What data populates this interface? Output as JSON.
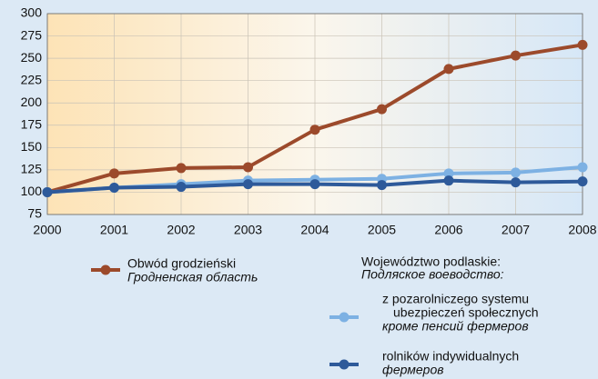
{
  "chart_data": {
    "type": "line",
    "x": [
      2000,
      2001,
      2002,
      2003,
      2004,
      2005,
      2006,
      2007,
      2008
    ],
    "xlim": [
      2000,
      2008
    ],
    "xticks": [
      2000,
      2001,
      2002,
      2003,
      2004,
      2005,
      2006,
      2007,
      2008
    ],
    "ylim": [
      75,
      300
    ],
    "yticks": [
      75,
      100,
      125,
      150,
      175,
      200,
      225,
      250,
      275,
      300
    ],
    "grid": true,
    "legend_group_title": [
      "Województwo podlaskie:",
      "Подляское воеводство:"
    ],
    "series": [
      {
        "name": [
          "Obwód grodzieński"
        ],
        "name_ru": "Гродненская область",
        "color": "#9c4a2b",
        "values": [
          100,
          121,
          127,
          128,
          170,
          193,
          238,
          253,
          265
        ]
      },
      {
        "name": [
          "z pozarolniczego systemu",
          "ubezpieczeń społecznych"
        ],
        "name_ru": "кроме пенсий фермеров",
        "color": "#7db1e3",
        "values": [
          100,
          105,
          109,
          113,
          114,
          115,
          121,
          122,
          128
        ]
      },
      {
        "name": [
          "rolników indywidualnych"
        ],
        "name_ru": "фермеров",
        "color": "#2e5a9a",
        "values": [
          100,
          105,
          106,
          109,
          109,
          108,
          113,
          111,
          112
        ]
      }
    ]
  }
}
